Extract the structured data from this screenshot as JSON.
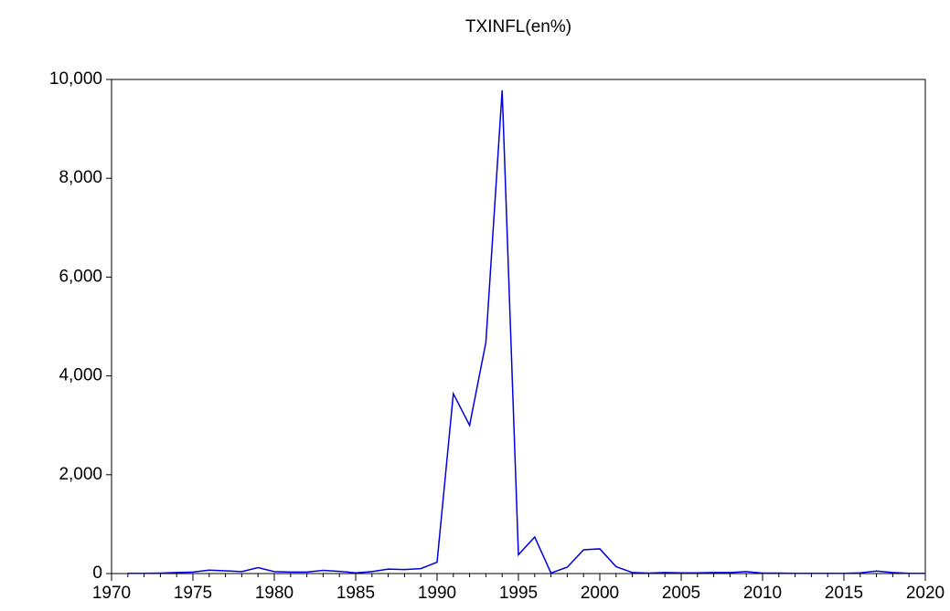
{
  "chart_data": {
    "type": "line",
    "title": "TXINFL(en%)",
    "x": [
      1971,
      1972,
      1973,
      1974,
      1975,
      1976,
      1977,
      1978,
      1979,
      1980,
      1981,
      1982,
      1983,
      1984,
      1985,
      1986,
      1987,
      1988,
      1989,
      1990,
      1991,
      1992,
      1993,
      1994,
      1995,
      1996,
      1997,
      1998,
      1999,
      2000,
      2001,
      2002,
      2003,
      2004,
      2005,
      2006,
      2007,
      2008,
      2009,
      2010,
      2011,
      2012,
      2013,
      2014,
      2015,
      2016,
      2017,
      2018,
      2019,
      2020
    ],
    "series": [
      {
        "name": "TXINFL",
        "color": "#0000e0",
        "values": [
          5,
          5,
          10,
          20,
          30,
          70,
          55,
          40,
          120,
          40,
          30,
          30,
          65,
          45,
          15,
          40,
          90,
          80,
          100,
          230,
          3640,
          3000,
          4680,
          9780,
          380,
          740,
          10,
          130,
          480,
          500,
          140,
          20,
          10,
          20,
          15,
          15,
          20,
          20,
          40,
          10,
          10,
          5,
          5,
          5,
          5,
          15,
          50,
          20,
          5,
          5
        ]
      }
    ],
    "xlim": [
      1970,
      2020
    ],
    "xticks": [
      1970,
      1975,
      1980,
      1985,
      1990,
      1995,
      2000,
      2005,
      2010,
      2015,
      2020
    ],
    "ylim": [
      0,
      10000
    ],
    "yticks": [
      0,
      {
        "value": 2000,
        "label": "2,000"
      },
      {
        "value": 4000,
        "label": "4,000"
      },
      {
        "value": 6000,
        "label": "6,000"
      },
      {
        "value": 8000,
        "label": "8,000"
      },
      {
        "value": 10000,
        "label": "10,000"
      }
    ]
  }
}
